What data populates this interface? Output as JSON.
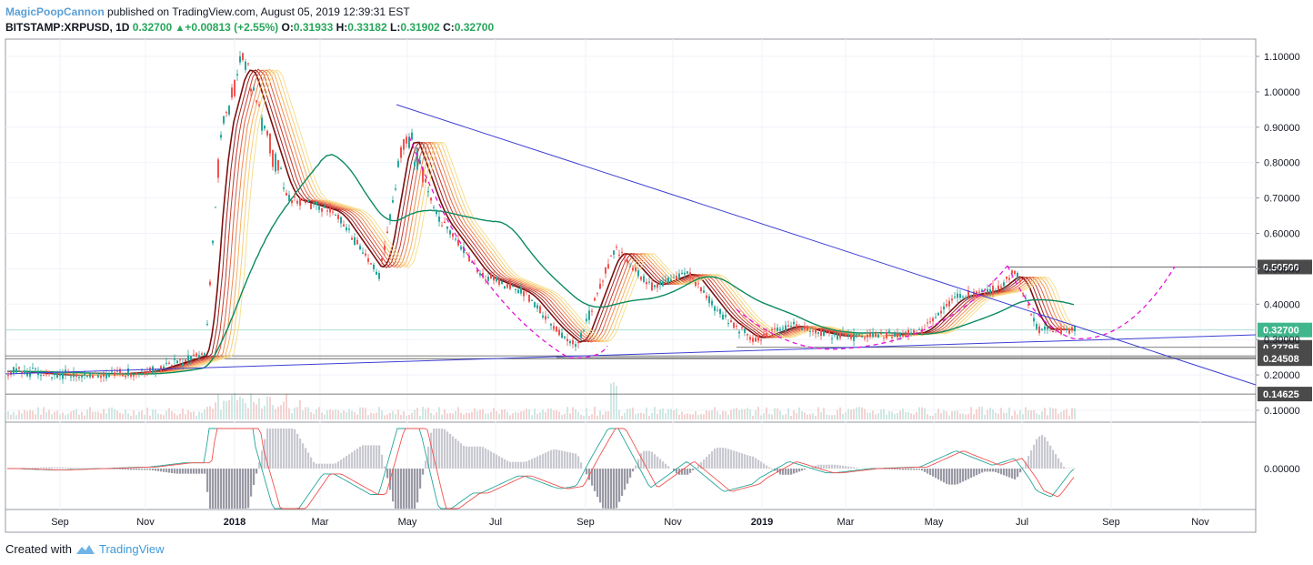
{
  "header": {
    "author": "MagicPoopCannon",
    "published_text": "published on TradingView.com, August 05, 2019 12:39:31 EST",
    "symbol": "BITSTAMP:XRPUSD, 1D",
    "last": "0.32700",
    "change": "+0.00813 (+2.55%)",
    "o_label": "O:",
    "o": "0.31933",
    "h_label": "H:",
    "h": "0.33182",
    "l_label": "L:",
    "l": "0.31902",
    "c_label": "C:",
    "c": "0.32700"
  },
  "footer": {
    "created_with": "Created with",
    "brand": "TradingView"
  },
  "colors": {
    "up": "#26a69a",
    "down": "#ef5350",
    "trendline": "#3f3fd4",
    "ma_long": "#0b8a60",
    "cup": "#e316d6",
    "hline": "#555555",
    "price_tag_current": "#3fb68b",
    "price_tag": "#4a4a4a"
  },
  "chart_data": {
    "type": "line",
    "title": "BITSTAMP:XRPUSD, 1D",
    "price_axis_ticks": [
      "1.10000",
      "1.00000",
      "0.90000",
      "0.80000",
      "0.70000",
      "0.60000",
      "0.50000",
      "0.40000",
      "0.30000",
      "0.20000",
      "0.10000"
    ],
    "price_tags": [
      {
        "label": "0.50500",
        "value": 0.505,
        "kind": "level"
      },
      {
        "label": "0.32700",
        "value": 0.327,
        "kind": "current"
      },
      {
        "label": "0.27795",
        "value": 0.278,
        "kind": "level"
      },
      {
        "label": "0.25313",
        "value": 0.254,
        "kind": "level"
      },
      {
        "label": "0.24508",
        "value": 0.246,
        "kind": "level"
      },
      {
        "label": "0.14625",
        "value": 0.146,
        "kind": "level"
      }
    ],
    "time_axis_ticks": [
      "Sep",
      "Nov",
      "2018",
      "Mar",
      "May",
      "Jul",
      "Sep",
      "Nov",
      "2019",
      "Mar",
      "May",
      "Jul",
      "Sep",
      "Nov"
    ],
    "macd_axis_tick": "0.00000",
    "series": [
      {
        "name": "XRPUSD close",
        "x": [
          "2017-08",
          "2017-09",
          "2017-10",
          "2017-11",
          "2017-12-10",
          "2017-12-20",
          "2018-01-05",
          "2018-02-05",
          "2018-03-10",
          "2018-04-10",
          "2018-04-28",
          "2018-05-20",
          "2018-06-20",
          "2018-07-20",
          "2018-08-10",
          "2018-08-25",
          "2018-09-20",
          "2018-10-15",
          "2018-11-10",
          "2018-12-05",
          "2018-12-25",
          "2019-01-20",
          "2019-02-20",
          "2019-03-20",
          "2019-04-20",
          "2019-05-15",
          "2019-06-10",
          "2019-06-25",
          "2019-07-10",
          "2019-08-05"
        ],
        "y": [
          0.21,
          0.2,
          0.2,
          0.21,
          0.26,
          0.85,
          1.1,
          0.7,
          0.66,
          0.48,
          0.9,
          0.65,
          0.48,
          0.43,
          0.33,
          0.28,
          0.56,
          0.45,
          0.49,
          0.36,
          0.3,
          0.34,
          0.31,
          0.31,
          0.32,
          0.42,
          0.44,
          0.49,
          0.33,
          0.327
        ]
      }
    ]
  }
}
